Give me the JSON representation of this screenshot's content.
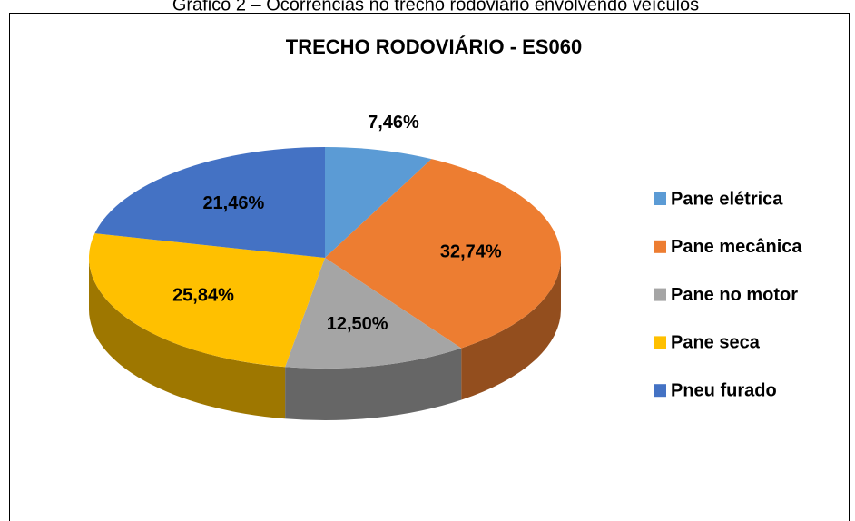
{
  "chart_data": {
    "type": "pie",
    "caption": "Gráfico 2 – Ocorrências no trecho rodoviário envolvendo veículos",
    "title": "TRECHO RODOVIÁRIO - ES060",
    "categories": [
      "Pane elétrica",
      "Pane mecânica",
      "Pane no motor",
      "Pane seca",
      "Pneu furado"
    ],
    "values": [
      7.46,
      32.74,
      12.5,
      25.84,
      21.46
    ],
    "value_labels": [
      "7,46%",
      "32,74%",
      "12,50%",
      "25,84%",
      "21,46%"
    ],
    "colors": [
      "#5b9bd5",
      "#ed7d31",
      "#a5a5a5",
      "#ffc000",
      "#4472c4"
    ],
    "legend": "right"
  }
}
